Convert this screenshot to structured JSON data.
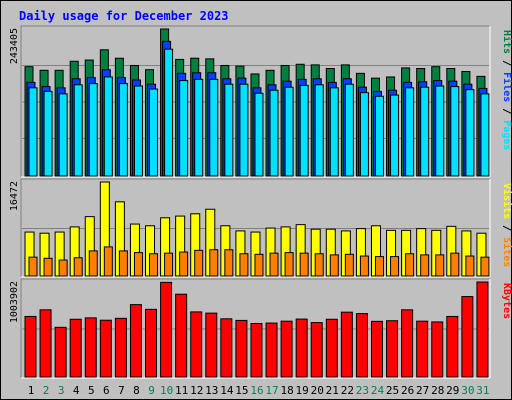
{
  "title": "Daily usage for December 2023",
  "colors": {
    "background": "#C0C0C0",
    "title": "#0000FF",
    "hits": "#008040",
    "files": "#0040FF",
    "pages": "#00E0FF",
    "visits": "#FFFF00",
    "sites": "#FF8000",
    "kbytes": "#FF0000",
    "weekend_label": "#00805C",
    "weekday_label": "#000000",
    "legend_separator": "#000000"
  },
  "chart_data": [
    {
      "type": "bar",
      "panel": "hits-files-pages",
      "y_tick_label": "243405",
      "ylim": [
        0,
        243405
      ],
      "categories": [
        "1",
        "2",
        "3",
        "4",
        "5",
        "6",
        "7",
        "8",
        "9",
        "10",
        "11",
        "12",
        "13",
        "14",
        "15",
        "16",
        "17",
        "18",
        "19",
        "20",
        "21",
        "22",
        "23",
        "24",
        "25",
        "26",
        "27",
        "28",
        "29",
        "30",
        "31"
      ],
      "weekend_days": [
        "2",
        "3",
        "9",
        "10",
        "16",
        "17",
        "23",
        "24",
        "30",
        "31"
      ],
      "legend": [
        {
          "label": "Hits",
          "color_key": "hits"
        },
        {
          "label": "Files",
          "color_key": "files"
        },
        {
          "label": "Pages",
          "color_key": "pages"
        }
      ],
      "series": [
        {
          "name": "Hits",
          "color_key": "hits",
          "values": [
            181000,
            175000,
            175000,
            190000,
            192000,
            209000,
            195000,
            183000,
            176000,
            243405,
            193000,
            195000,
            194000,
            183000,
            182000,
            169000,
            175000,
            183000,
            185000,
            184000,
            178000,
            184000,
            170000,
            162000,
            164000,
            179000,
            178000,
            181000,
            178000,
            173000,
            165000
          ]
        },
        {
          "name": "Files",
          "color_key": "files",
          "values": [
            155000,
            148000,
            146000,
            161000,
            163000,
            176000,
            163000,
            159000,
            152000,
            223000,
            170000,
            171000,
            171000,
            161000,
            162000,
            146000,
            151000,
            157000,
            160000,
            161000,
            155000,
            161000,
            147000,
            140000,
            142000,
            155000,
            156000,
            158000,
            157000,
            152000,
            145000
          ]
        },
        {
          "name": "Pages",
          "color_key": "pages",
          "values": [
            146000,
            140000,
            136000,
            151000,
            153000,
            164000,
            153000,
            149000,
            144000,
            210000,
            158000,
            160000,
            160000,
            152000,
            152000,
            137000,
            142000,
            147000,
            150000,
            151000,
            146000,
            152000,
            138000,
            132000,
            134000,
            146000,
            147000,
            149000,
            148000,
            143000,
            136000
          ]
        }
      ]
    },
    {
      "type": "bar",
      "panel": "visits-sites",
      "y_tick_label": "16472",
      "ylim": [
        0,
        16472
      ],
      "legend": [
        {
          "label": "Visits",
          "color_key": "visits"
        },
        {
          "label": "Sites",
          "color_key": "sites"
        }
      ],
      "series": [
        {
          "name": "Visits",
          "color_key": "visits",
          "values": [
            7700,
            7500,
            7700,
            8600,
            10400,
            16472,
            13000,
            9100,
            8800,
            10200,
            10500,
            10900,
            11700,
            8800,
            7900,
            7700,
            8400,
            8600,
            9000,
            8200,
            8200,
            7900,
            8300,
            8800,
            8000,
            8000,
            8300,
            8000,
            8700,
            7900,
            7500
          ]
        },
        {
          "name": "Sites",
          "color_key": "sites",
          "values": [
            3300,
            3100,
            2800,
            3200,
            4400,
            5100,
            4400,
            4100,
            3900,
            4000,
            4200,
            4500,
            4600,
            4600,
            3900,
            3800,
            4000,
            4100,
            4000,
            3900,
            3700,
            3800,
            3500,
            3400,
            3400,
            3900,
            3700,
            3700,
            4000,
            3500,
            3300
          ]
        }
      ]
    },
    {
      "type": "bar",
      "panel": "kbytes",
      "y_tick_label": "1003902",
      "ylim": [
        0,
        1003902
      ],
      "legend": [
        {
          "label": "KBytes",
          "color_key": "kbytes"
        }
      ],
      "series": [
        {
          "name": "KBytes",
          "color_key": "kbytes",
          "values": [
            640000,
            710000,
            525000,
            610000,
            625000,
            600000,
            620000,
            765000,
            715000,
            1000000,
            875000,
            688000,
            675000,
            615000,
            598000,
            565000,
            570000,
            590000,
            612000,
            575000,
            610000,
            685000,
            670000,
            588000,
            595000,
            710000,
            590000,
            582000,
            640000,
            850000,
            1003902
          ]
        }
      ]
    }
  ]
}
